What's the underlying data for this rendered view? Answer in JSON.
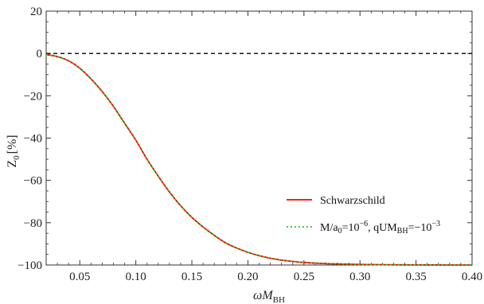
{
  "chart_data": {
    "type": "line",
    "xlabel": "ωM_BH",
    "ylabel": "Z_0 [%]",
    "xlim": [
      0.02,
      0.4
    ],
    "ylim": [
      -100,
      20
    ],
    "xticks": [
      0.05,
      0.1,
      0.15,
      0.2,
      0.25,
      0.3,
      0.35,
      0.4
    ],
    "xtick_labels": [
      "0.05",
      "0.10",
      "0.15",
      "0.20",
      "0.25",
      "0.30",
      "0.35",
      "0.40"
    ],
    "yticks": [
      20,
      0,
      -20,
      -40,
      -60,
      -80,
      -100
    ],
    "ytick_labels": [
      "20",
      "0",
      "−20",
      "−40",
      "−60",
      "−80",
      "−100"
    ],
    "reference_line": {
      "y": 0,
      "style": "dashed",
      "color": "#000000"
    },
    "legend_position": "lower-right",
    "grid": false,
    "x": [
      0.02,
      0.03,
      0.04,
      0.05,
      0.06,
      0.07,
      0.08,
      0.09,
      0.1,
      0.11,
      0.12,
      0.13,
      0.14,
      0.15,
      0.16,
      0.17,
      0.18,
      0.19,
      0.2,
      0.21,
      0.22,
      0.23,
      0.24,
      0.25,
      0.26,
      0.27,
      0.28,
      0.29,
      0.3,
      0.31,
      0.32,
      0.33,
      0.34,
      0.35,
      0.36,
      0.37,
      0.38,
      0.39,
      0.4
    ],
    "series": [
      {
        "name": "Schwarzschild",
        "color": "#ff0000",
        "style": "solid",
        "values": [
          -0.5,
          -1.5,
          -3.5,
          -7,
          -12,
          -18,
          -25,
          -33,
          -41,
          -50,
          -58,
          -65.5,
          -72,
          -77.5,
          -82,
          -86,
          -89.5,
          -92,
          -94,
          -95.6,
          -96.8,
          -97.7,
          -98.3,
          -98.8,
          -99.1,
          -99.35,
          -99.5,
          -99.62,
          -99.72,
          -99.8,
          -99.85,
          -99.9,
          -99.93,
          -99.95,
          -99.97,
          -99.98,
          -99.99,
          -99.99,
          -100
        ]
      },
      {
        "name_parts": [
          "M/a",
          "0",
          "=10",
          "−6",
          ", qUM",
          "BH",
          "=−10",
          "−3"
        ],
        "color": "#22cc22",
        "style": "dotted",
        "values": [
          -0.5,
          -1.5,
          -3.5,
          -7,
          -12,
          -18,
          -25,
          -33,
          -41,
          -50,
          -58,
          -65.5,
          -72,
          -77.5,
          -82,
          -86,
          -89.5,
          -92,
          -94,
          -95.6,
          -96.8,
          -97.7,
          -98.3,
          -98.8,
          -99.1,
          -99.35,
          -99.5,
          -99.62,
          -99.72,
          -99.8,
          -99.85,
          -99.9,
          -99.93,
          -99.95,
          -99.97,
          -99.98,
          -99.99,
          -99.99,
          -100
        ]
      }
    ]
  },
  "axis_text": {
    "x_main": "ωM",
    "x_sub": "BH",
    "y_main": "Z",
    "y_sub": "0",
    "y_unit": "[%]"
  }
}
